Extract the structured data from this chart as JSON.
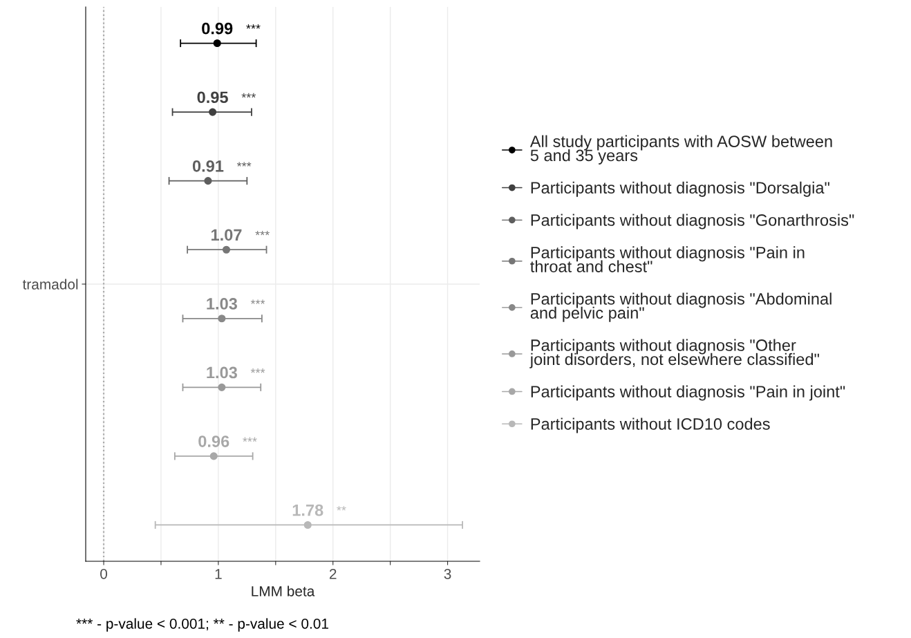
{
  "chart_data": {
    "type": "scatter",
    "orientation": "horizontal",
    "xlabel": "LMM beta",
    "categories": [
      "tramadol"
    ],
    "xlim": [
      -0.157,
      3.28
    ],
    "xticks": [
      0,
      {
        "value": 0.5,
        "label": null
      },
      1,
      {
        "value": 1.5,
        "label": null
      },
      2,
      {
        "value": 2.5,
        "label": null
      },
      3
    ],
    "grid": true,
    "legend": "right",
    "marker": "circle",
    "ref_lines": [
      {
        "axis": "x",
        "value": 0,
        "color": "#aaaaaa",
        "line_style": "dotted"
      }
    ],
    "series": [
      {
        "name": "All study participants with AOSW between\n5 and 35 years",
        "color": "#000000",
        "values": [
          0.99
        ],
        "errors": [
          [
            0.67,
            1.33
          ]
        ],
        "value_labels": [
          "0.99"
        ]
      },
      {
        "name": "Participants without diagnosis \"Dorsalgia\"",
        "color": "#404040",
        "values": [
          0.95
        ],
        "errors": [
          [
            0.6,
            1.29
          ]
        ],
        "value_labels": [
          "0.95"
        ]
      },
      {
        "name": "Participants without diagnosis \"Gonarthrosis\"",
        "color": "#5e5e5e",
        "values": [
          0.91
        ],
        "errors": [
          [
            0.57,
            1.25
          ]
        ],
        "value_labels": [
          "0.91"
        ]
      },
      {
        "name": "Participants without diagnosis \"Pain in\nthroat and chest\"",
        "color": "#767676",
        "values": [
          1.07
        ],
        "errors": [
          [
            0.73,
            1.42
          ]
        ],
        "value_labels": [
          "1.07"
        ]
      },
      {
        "name": "Participants without diagnosis \"Abdominal\nand pelvic pain\"",
        "color": "#888888",
        "values": [
          1.03
        ],
        "errors": [
          [
            0.69,
            1.38
          ]
        ],
        "value_labels": [
          "1.03"
        ]
      },
      {
        "name": "Participants without diagnosis \"Other\njoint disorders, not elsewhere classified\"",
        "color": "#999999",
        "values": [
          1.03
        ],
        "errors": [
          [
            0.69,
            1.37
          ]
        ],
        "value_labels": [
          "1.03"
        ]
      },
      {
        "name": "Participants without diagnosis \"Pain in joint\"",
        "color": "#a8a8a8",
        "values": [
          0.96
        ],
        "errors": [
          [
            0.62,
            1.3
          ]
        ],
        "value_labels": [
          "0.96"
        ]
      },
      {
        "name": "Participants without ICD10 codes",
        "color": "#b8b8b8",
        "values": [
          1.78
        ],
        "errors": [
          [
            0.45,
            3.13
          ]
        ],
        "value_labels": [
          "1.78"
        ]
      }
    ],
    "annotations": [
      "***",
      "***",
      "***",
      "***",
      "***",
      "***",
      "***",
      "**",
      "*** - p-value < 0.001; ** - p-value < 0.01"
    ]
  }
}
